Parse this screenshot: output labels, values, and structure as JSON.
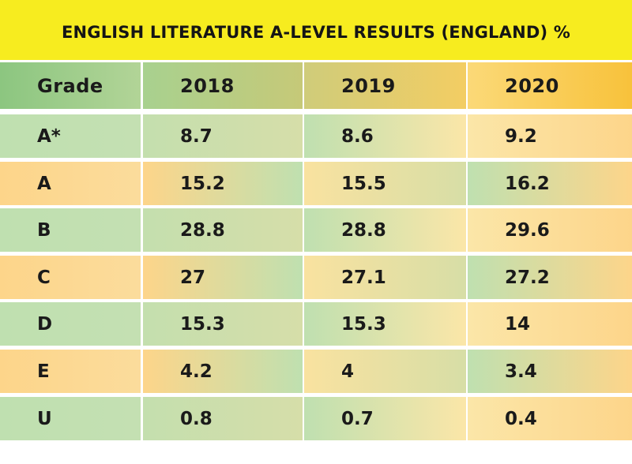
{
  "chart_data": {
    "type": "table",
    "title": "ENGLISH LITERATURE A-LEVEL RESULTS (ENGLAND) %",
    "columns": [
      "Grade",
      "2018",
      "2019",
      "2020"
    ],
    "rows": [
      [
        "A*",
        "8.7",
        "8.6",
        "9.2"
      ],
      [
        "A",
        "15.2",
        "15.5",
        "16.2"
      ],
      [
        "B",
        "28.8",
        "28.8",
        "29.6"
      ],
      [
        "C",
        "27",
        "27.1",
        "27.2"
      ],
      [
        "D",
        "15.3",
        "15.3",
        "14"
      ],
      [
        "E",
        "4.2",
        "4",
        "3.4"
      ],
      [
        "U",
        "0.8",
        "0.7",
        "0.4"
      ]
    ]
  },
  "colors": {
    "title_background": "#f7ec1f",
    "green": "#bfe0b0",
    "orange": "#fdd58a",
    "cream": "#fbe6a8",
    "header_green": "#8cc680",
    "header_gold": "#f8c23b"
  }
}
